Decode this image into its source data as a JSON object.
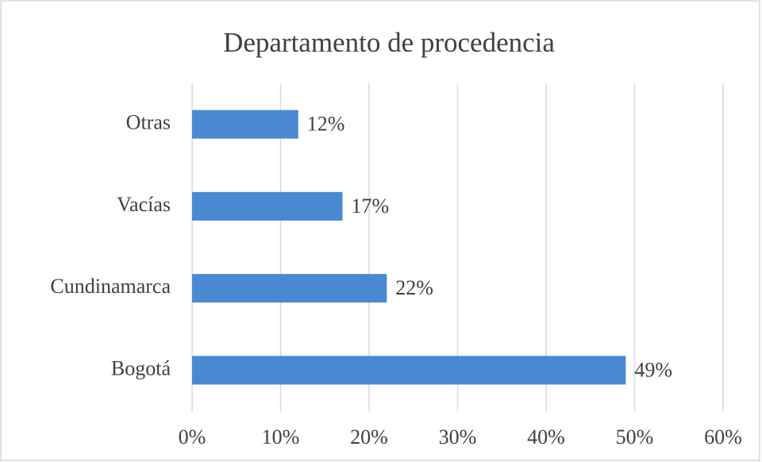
{
  "chart_data": {
    "type": "bar",
    "orientation": "horizontal",
    "title": "Departamento de procedencia",
    "categories": [
      "Bogotá",
      "Cundinamarca",
      "Vacías",
      "Otras"
    ],
    "values": [
      49,
      22,
      17,
      12
    ],
    "value_labels": [
      "49%",
      "22%",
      "17%",
      "12%"
    ],
    "color": "#4a89d2",
    "xlim": [
      0,
      60
    ],
    "xticks": [
      {
        "value": 0,
        "label": "0%"
      },
      {
        "value": 10,
        "label": "10%"
      },
      {
        "value": 20,
        "label": "20%"
      },
      {
        "value": 30,
        "label": "30%"
      },
      {
        "value": 40,
        "label": "40%"
      },
      {
        "value": 50,
        "label": "50%"
      },
      {
        "value": 60,
        "label": "60%"
      }
    ],
    "grid": true
  }
}
